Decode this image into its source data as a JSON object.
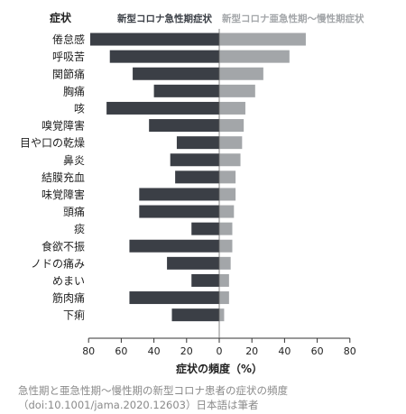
{
  "chart_data": {
    "type": "bar",
    "orientation": "horizontal-diverging",
    "category_header": "症状",
    "categories": [
      "倦怠感",
      "呼吸苦",
      "関節痛",
      "胸痛",
      "咳",
      "嗅覚障害",
      "目や口の乾燥",
      "鼻炎",
      "結膜充血",
      "味覚障害",
      "頭痛",
      "痰",
      "食欲不振",
      "ノドの痛み",
      "めまい",
      "筋肉痛",
      "下痢"
    ],
    "series": [
      {
        "name": "新型コロナ急性期症状",
        "direction": "left",
        "color": "#3b3f46",
        "values": [
          79,
          67,
          53,
          40,
          69,
          43,
          26,
          30,
          27,
          49,
          49,
          17,
          55,
          32,
          17,
          55,
          29
        ]
      },
      {
        "name": "新型コロナ亜急性期〜慢性期症状",
        "direction": "right",
        "color": "#a3a6a9",
        "values": [
          53,
          43,
          27,
          22,
          16,
          15,
          14,
          13,
          10,
          10,
          9,
          8,
          8,
          7,
          6,
          6,
          3
        ]
      }
    ],
    "xlabel": "症状の頻度（%）",
    "xlim": [
      -80,
      80
    ],
    "xticks": [
      "80",
      "60",
      "40",
      "20",
      "0",
      "20",
      "40",
      "60",
      "80"
    ],
    "grid": false
  },
  "caption": {
    "line1": "急性期と亜急性期〜慢性期の新型コロナ患者の症状の頻度",
    "line2": "（doi:10.1001/jama.2020.12603）日本語は筆者"
  }
}
